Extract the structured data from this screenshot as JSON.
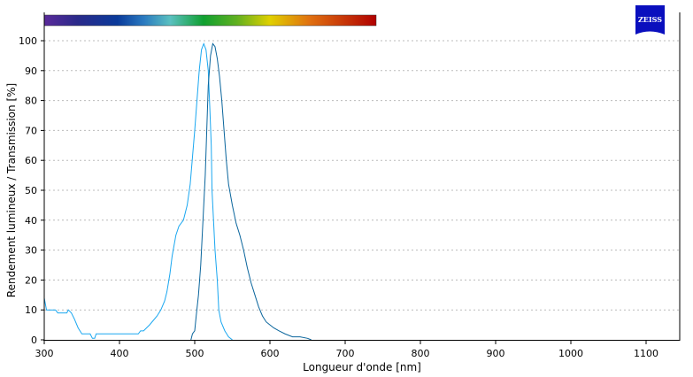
{
  "chart_data": {
    "type": "line",
    "title": "",
    "xlabel": "Longueur d'onde [nm]",
    "ylabel": "Rendement lumineux / Transmission [%]",
    "xlim": [
      300,
      1145
    ],
    "ylim": [
      0,
      100
    ],
    "xticks": [
      300,
      400,
      500,
      600,
      700,
      800,
      900,
      1000,
      1100
    ],
    "yticks": [
      0,
      10,
      20,
      30,
      40,
      50,
      60,
      70,
      80,
      90,
      100
    ],
    "grid": "horizontal dashed",
    "legend": "none",
    "colorbar_range_nm": [
      300,
      741
    ],
    "series": [
      {
        "color": "#1aa7f0",
        "points": [
          [
            300,
            14
          ],
          [
            303,
            10
          ],
          [
            315,
            10
          ],
          [
            318,
            9
          ],
          [
            330,
            9
          ],
          [
            332,
            10
          ],
          [
            336,
            9
          ],
          [
            340,
            7
          ],
          [
            345,
            4
          ],
          [
            350,
            2
          ],
          [
            361,
            2
          ],
          [
            364,
            0.5
          ],
          [
            367,
            0.5
          ],
          [
            369,
            2
          ],
          [
            425,
            2
          ],
          [
            428,
            3
          ],
          [
            432,
            3
          ],
          [
            440,
            5
          ],
          [
            450,
            8
          ],
          [
            455,
            10
          ],
          [
            460,
            13
          ],
          [
            463,
            16
          ],
          [
            467,
            22
          ],
          [
            470,
            28
          ],
          [
            475,
            35
          ],
          [
            479,
            38
          ],
          [
            485,
            40
          ],
          [
            490,
            45
          ],
          [
            494,
            52
          ],
          [
            497,
            61
          ],
          [
            500,
            70
          ],
          [
            503,
            80
          ],
          [
            506,
            90
          ],
          [
            509,
            97
          ],
          [
            512,
            99
          ],
          [
            515,
            97
          ],
          [
            518,
            90
          ],
          [
            520,
            78
          ],
          [
            522,
            65
          ],
          [
            523,
            50
          ],
          [
            525,
            40
          ],
          [
            527,
            30
          ],
          [
            530,
            20
          ],
          [
            532,
            10
          ],
          [
            535,
            6
          ],
          [
            540,
            3
          ],
          [
            545,
            1
          ],
          [
            550,
            0
          ]
        ]
      },
      {
        "color": "#0a659c",
        "points": [
          [
            495,
            0
          ],
          [
            497,
            2
          ],
          [
            500,
            3
          ],
          [
            502,
            8
          ],
          [
            505,
            15
          ],
          [
            508,
            25
          ],
          [
            511,
            40
          ],
          [
            514,
            55
          ],
          [
            516,
            70
          ],
          [
            518,
            85
          ],
          [
            521,
            95
          ],
          [
            524,
            99
          ],
          [
            527,
            98
          ],
          [
            530,
            94
          ],
          [
            533,
            88
          ],
          [
            536,
            80
          ],
          [
            539,
            70
          ],
          [
            542,
            60
          ],
          [
            545,
            52
          ],
          [
            550,
            45
          ],
          [
            555,
            39
          ],
          [
            560,
            35
          ],
          [
            565,
            30
          ],
          [
            570,
            24
          ],
          [
            575,
            19
          ],
          [
            580,
            15
          ],
          [
            585,
            11
          ],
          [
            590,
            8
          ],
          [
            595,
            6
          ],
          [
            600,
            5
          ],
          [
            605,
            4
          ],
          [
            612,
            3
          ],
          [
            620,
            2
          ],
          [
            630,
            1
          ],
          [
            640,
            1
          ],
          [
            650,
            0.5
          ],
          [
            655,
            0
          ]
        ]
      }
    ]
  },
  "logo": {
    "text": "ZEISS",
    "color": "#0a0fbe"
  }
}
